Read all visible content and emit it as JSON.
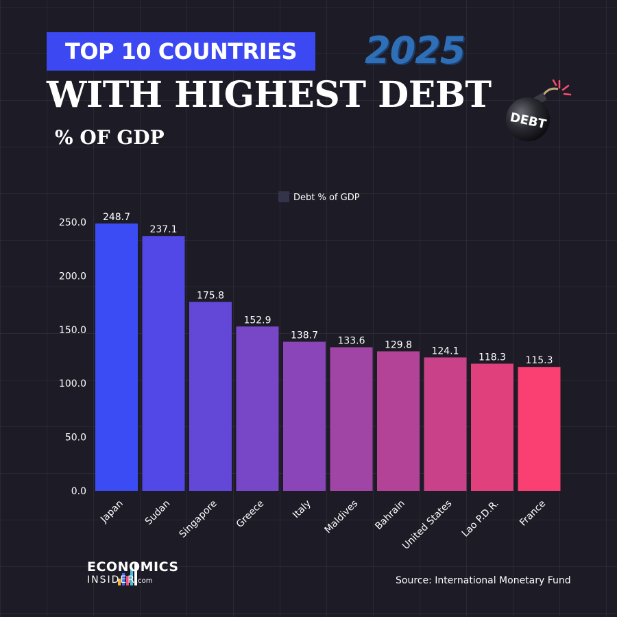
{
  "header": {
    "banner": "TOP 10 COUNTRIES",
    "year": "2025",
    "headline": "WITH HIGHEST DEBT",
    "subhead": "% OF GDP",
    "bomb_label": "DEBT"
  },
  "footer": {
    "logo_line1": "ECONOMICS",
    "logo_line2": "INSIDER",
    "logo_suffix": ".com",
    "source": "Source: International Monetary Fund"
  },
  "colors": {
    "background": "#1c1b26",
    "banner": "#3c49f3",
    "bar_start": "#3b4cf5",
    "bar_end": "#fa3f73"
  },
  "chart_data": {
    "type": "bar",
    "legend_position": "top-center",
    "grid": true,
    "categories": [
      "Japan",
      "Sudan",
      "Singapore",
      "Greece",
      "Italy",
      "Maldives",
      "Bahrain",
      "United States",
      "Lao P.D.R.",
      "France"
    ],
    "series": [
      {
        "name": "Debt % of GDP",
        "values": [
          248.7,
          237.1,
          175.8,
          152.9,
          138.7,
          133.6,
          129.8,
          124.1,
          118.3,
          115.3
        ]
      }
    ],
    "data_labels": [
      "248.7",
      "237.1",
      "175.8",
      "152.9",
      "138.7",
      "133.6",
      "129.8",
      "124.1",
      "118.3",
      "115.3"
    ],
    "yticks": [
      0,
      50,
      100,
      150,
      200,
      250
    ],
    "ytick_labels": [
      "0.0",
      "50.0",
      "100.0",
      "150.0",
      "200.0",
      "250.0"
    ],
    "ylim": [
      0,
      250
    ],
    "bar_colors": [
      "#3b4cf5",
      "#5248e8",
      "#6348d8",
      "#7747c8",
      "#8a46b8",
      "#a044a6",
      "#b34397",
      "#c94289",
      "#e0417d",
      "#fa3f73"
    ]
  }
}
